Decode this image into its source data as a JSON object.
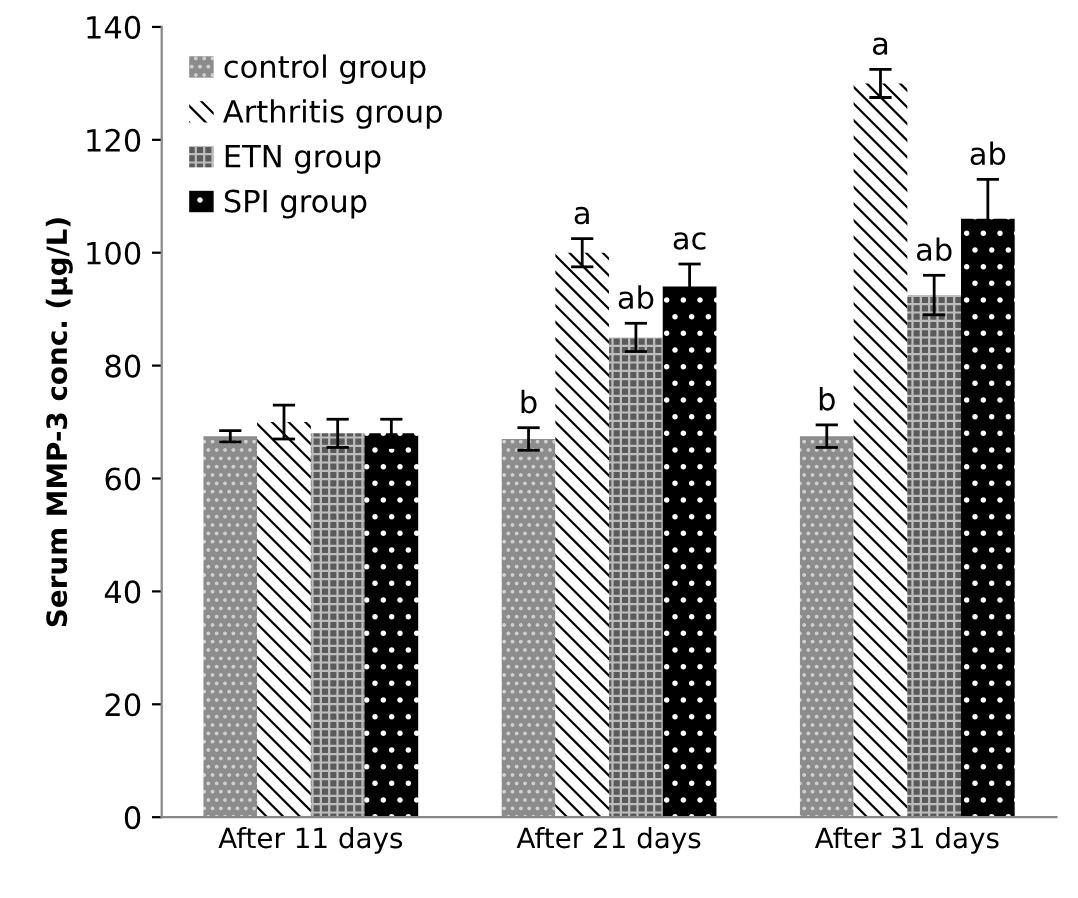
{
  "chart_data": {
    "type": "bar",
    "ylabel": "Serum MMP-3 conc. (μg/L)",
    "categories": [
      "After 11 days",
      "After 21 days",
      "After 31 days"
    ],
    "series": [
      {
        "name": "control group",
        "color": "#8c8c8c",
        "values": [
          67.5,
          67,
          67.5
        ],
        "errors": [
          1,
          2,
          2
        ]
      },
      {
        "name": "Arthritis group",
        "color": "#ffffff",
        "values": [
          70,
          100,
          130
        ],
        "errors": [
          3,
          2.5,
          2.5
        ]
      },
      {
        "name": "ETN group",
        "color": "#5a5a5a",
        "values": [
          68,
          85,
          92.5
        ],
        "errors": [
          2.5,
          2.5,
          3.5
        ]
      },
      {
        "name": "SPI group",
        "color": "#000000",
        "values": [
          68,
          94,
          106
        ],
        "errors": [
          2.5,
          4,
          7
        ]
      }
    ],
    "annotations": [
      {
        "text": "b",
        "x": "After 21 days",
        "y": 67
      },
      {
        "text": "a",
        "x": "After 21 days",
        "y": 100
      },
      {
        "text": "ab",
        "x": "After 21 days",
        "y": 85
      },
      {
        "text": "ac",
        "x": "After 21 days",
        "y": 94
      },
      {
        "text": "b",
        "x": "After 31 days",
        "y": 67.5
      },
      {
        "text": "a",
        "x": "After 31 days",
        "y": 130
      },
      {
        "text": "ab",
        "x": "After 31 days",
        "y": 92.5
      },
      {
        "text": "ab",
        "x": "After 31 days",
        "y": 106
      }
    ],
    "ylim": [
      0,
      140
    ],
    "yticks": [
      0,
      20,
      40,
      60,
      80,
      100,
      120,
      140
    ],
    "grid": false,
    "legend": "top left"
  }
}
